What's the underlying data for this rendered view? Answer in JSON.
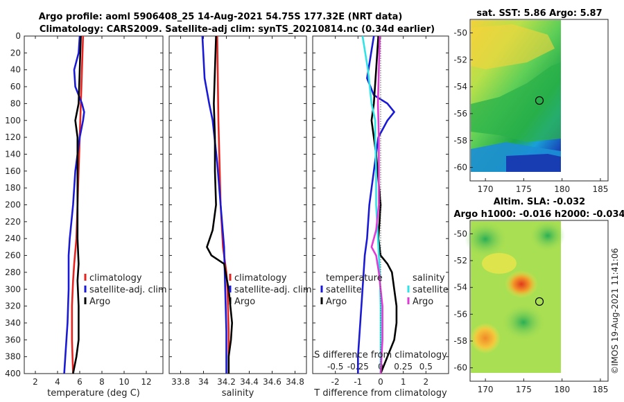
{
  "title_line1": "Argo profile: aoml 5906408_25 14-Aug-2021 54.75S 177.32E (NRT data)",
  "title_line2": "Climatology: CARS2009. Satellite-adj clim: synTS_20210814.nc (0.34d earlier)",
  "copyright": "©IMOS 19-Aug-2021 11:41:06",
  "colors": {
    "climatology": "#e8231f",
    "satellite": "#1a1ad6",
    "argo": "#000000",
    "salinity_sat": "#2fe3e6",
    "salinity_argo": "#e03ad6"
  },
  "chart_data": [
    {
      "id": "temperature",
      "type": "line",
      "xlabel": "temperature (deg C)",
      "xlim": [
        1,
        13.5
      ],
      "ylim": [
        0,
        400
      ],
      "yreversed": true,
      "xticks": [
        "2",
        "4",
        "6",
        "8",
        "10",
        "12"
      ],
      "xtick_values": [
        2,
        4,
        6,
        8,
        10,
        12
      ],
      "yticks": [
        "0",
        "20",
        "40",
        "60",
        "80",
        "100",
        "120",
        "140",
        "160",
        "180",
        "200",
        "220",
        "240",
        "260",
        "280",
        "300",
        "320",
        "340",
        "360",
        "380",
        "400"
      ],
      "legend": {
        "position": "lower-right",
        "entries": [
          "climatology",
          "satellite-adj. clim",
          "Argo"
        ]
      },
      "series": [
        {
          "name": "climatology",
          "depth": [
            0,
            40,
            80,
            120,
            160,
            200,
            240,
            270,
            290,
            320,
            360,
            400
          ],
          "values": [
            6.3,
            6.2,
            6.1,
            6.0,
            5.9,
            5.8,
            5.7,
            5.5,
            5.4,
            5.3,
            5.3,
            5.4
          ]
        },
        {
          "name": "satellite-adj. clim",
          "depth": [
            0,
            20,
            40,
            60,
            70,
            80,
            90,
            100,
            120,
            140,
            160,
            200,
            240,
            260,
            300,
            340,
            380,
            400
          ],
          "values": [
            6.0,
            5.9,
            5.5,
            5.6,
            5.9,
            6.2,
            6.4,
            6.3,
            6.0,
            5.8,
            5.6,
            5.4,
            5.1,
            5.0,
            5.0,
            4.9,
            4.7,
            4.6
          ]
        },
        {
          "name": "Argo",
          "depth": [
            0,
            40,
            80,
            100,
            120,
            160,
            200,
            240,
            270,
            290,
            320,
            360,
            380,
            400
          ],
          "values": [
            6.1,
            6.0,
            5.9,
            5.6,
            5.8,
            5.8,
            5.8,
            5.8,
            5.9,
            5.8,
            5.9,
            5.9,
            5.7,
            5.4
          ]
        }
      ]
    },
    {
      "id": "salinity",
      "type": "line",
      "xlabel": "salinity",
      "xlim": [
        33.7,
        34.9
      ],
      "ylim": [
        0,
        400
      ],
      "yreversed": true,
      "xticks": [
        "33.8",
        "34",
        "34.2",
        "34.4",
        "34.6",
        "34.8"
      ],
      "xtick_values": [
        33.8,
        34.0,
        34.2,
        34.4,
        34.6,
        34.8
      ],
      "legend": {
        "position": "lower-right",
        "entries": [
          "climatology",
          "satellite-adj. clim",
          "Argo"
        ]
      },
      "series": [
        {
          "name": "climatology",
          "depth": [
            0,
            100,
            200,
            250,
            280,
            300,
            350,
            400
          ],
          "values": [
            34.12,
            34.13,
            34.15,
            34.17,
            34.2,
            34.21,
            34.22,
            34.22
          ]
        },
        {
          "name": "satellite-adj. clim",
          "depth": [
            0,
            50,
            80,
            100,
            150,
            200,
            250,
            300,
            350,
            400
          ],
          "values": [
            33.99,
            34.01,
            34.05,
            34.08,
            34.12,
            34.15,
            34.18,
            34.19,
            34.2,
            34.2
          ]
        },
        {
          "name": "Argo",
          "depth": [
            0,
            40,
            80,
            120,
            160,
            200,
            230,
            250,
            260,
            270,
            300,
            340,
            360,
            380,
            400
          ],
          "values": [
            34.11,
            34.1,
            34.09,
            34.1,
            34.1,
            34.11,
            34.08,
            34.03,
            34.07,
            34.18,
            34.22,
            34.25,
            34.24,
            34.22,
            34.22
          ]
        }
      ]
    },
    {
      "id": "difference",
      "type": "line",
      "xlabel": "T difference from climatology",
      "xlabel_top": "S difference from climatology",
      "xlim": [
        -3,
        3
      ],
      "ylim": [
        0,
        400
      ],
      "yreversed": true,
      "xticks": [
        "-2",
        "-1",
        "0",
        "1",
        "2"
      ],
      "xtick_values": [
        -2,
        -1,
        0,
        1,
        2
      ],
      "xticks_top": [
        "-0.5",
        "-0.25",
        "0",
        "0.25",
        "0.5"
      ],
      "xtick_values_top": [
        -0.5,
        -0.25,
        0,
        0.25,
        0.5
      ],
      "legend_left": {
        "title": "temperature",
        "entries": [
          "satellite",
          "Argo"
        ]
      },
      "legend_right": {
        "title": "salinity",
        "entries": [
          "satellite",
          "Argo"
        ]
      },
      "series": [
        {
          "name": "temperature satellite",
          "depth": [
            0,
            50,
            70,
            80,
            90,
            100,
            120,
            160,
            200,
            240,
            260,
            300,
            340,
            380,
            400
          ],
          "values": [
            -0.3,
            -0.6,
            -0.3,
            0.3,
            0.6,
            0.3,
            -0.1,
            -0.3,
            -0.5,
            -0.6,
            -0.7,
            -0.8,
            -0.9,
            -1.0,
            -1.0
          ]
        },
        {
          "name": "temperature Argo",
          "depth": [
            0,
            40,
            80,
            100,
            140,
            200,
            240,
            260,
            270,
            280,
            300,
            320,
            340,
            360,
            380,
            400
          ],
          "values": [
            -0.1,
            -0.2,
            -0.3,
            -0.4,
            -0.2,
            0.0,
            -0.1,
            0.0,
            0.3,
            0.5,
            0.6,
            0.7,
            0.7,
            0.6,
            0.3,
            0.0
          ]
        },
        {
          "name": "salinity satellite",
          "depth": [
            0,
            40,
            80,
            100,
            120,
            160,
            200,
            240,
            280,
            320,
            360,
            400
          ],
          "values": [
            -0.2,
            -0.14,
            -0.1,
            -0.06,
            -0.06,
            -0.05,
            -0.05,
            -0.03,
            -0.01,
            0.0,
            0.0,
            0.0
          ]
        },
        {
          "name": "salinity Argo",
          "depth": [
            0,
            40,
            80,
            120,
            160,
            200,
            230,
            250,
            260,
            280,
            300,
            320,
            360,
            400
          ],
          "values": [
            -0.01,
            -0.02,
            -0.03,
            -0.02,
            -0.02,
            -0.02,
            -0.05,
            -0.1,
            -0.05,
            -0.02,
            0.0,
            0.02,
            0.02,
            0.0
          ]
        }
      ]
    },
    {
      "id": "sst_map",
      "type": "heatmap",
      "title": "sat. SST: 5.86 Argo: 5.87",
      "xlim": [
        168,
        186
      ],
      "ylim": [
        -61,
        -49
      ],
      "xticks": [
        "170",
        "175",
        "180",
        "185"
      ],
      "xtick_values": [
        170,
        175,
        180,
        185
      ],
      "yticks": [
        "-50",
        "-52",
        "-54",
        "-56",
        "-58",
        "-60"
      ],
      "ytick_values": [
        -50,
        -52,
        -54,
        -56,
        -58,
        -60
      ],
      "marker": {
        "lon": 177.32,
        "lat": -54.75
      }
    },
    {
      "id": "sla_map",
      "type": "heatmap",
      "title": "Altim. SLA: -0.032",
      "subtitle": "Argo h1000: -0.016 h2000: -0.034",
      "xlim": [
        168,
        186
      ],
      "ylim": [
        -61,
        -49
      ],
      "xticks": [
        "170",
        "175",
        "180",
        "185"
      ],
      "xtick_values": [
        170,
        175,
        180,
        185
      ],
      "yticks": [
        "-50",
        "-52",
        "-54",
        "-56",
        "-58",
        "-60"
      ],
      "ytick_values": [
        -50,
        -52,
        -54,
        -56,
        -58,
        -60
      ],
      "marker": {
        "lon": 177.32,
        "lat": -54.75
      }
    }
  ]
}
